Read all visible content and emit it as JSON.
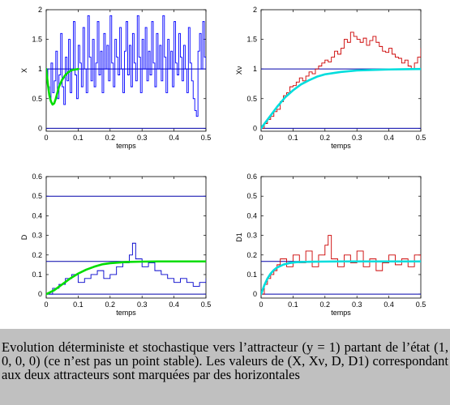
{
  "caption": "Evolution déterministe et stochastique vers l’attracteur (y = 1) partant de l’état (1, 0, 0, 0) (ce n’est pas un point stable). Les valeurs de (X, Xν, D, D1) correspondant aux deux attracteurs sont marquées par des horizontales",
  "colors": {
    "stochastic_X": "#0000ff",
    "stochastic_Xv": "#cc0000",
    "stochastic_D": "#0000cc",
    "stochastic_D1": "#cc0000",
    "deterministic_green": "#00dd00",
    "deterministic_cyan": "#00dddd",
    "attractor_lines": "#0000aa"
  },
  "chart_data": [
    {
      "type": "line",
      "panel": "top-left",
      "xlabel": "temps",
      "ylabel": "X",
      "xlim": [
        0,
        0.5
      ],
      "ylim": [
        -0.05,
        2
      ],
      "xticks": [
        "0",
        "0.1",
        "0.2",
        "0.3",
        "0.4",
        "0.5"
      ],
      "yticks": [
        "0",
        "0.5",
        "1",
        "1.5",
        "2"
      ],
      "attractor_values": [
        0,
        1
      ],
      "series": [
        {
          "kind": "stochastic",
          "x": [
            0,
            0.005,
            0.01,
            0.015,
            0.02,
            0.025,
            0.03,
            0.035,
            0.04,
            0.045,
            0.05,
            0.055,
            0.06,
            0.065,
            0.07,
            0.075,
            0.08,
            0.085,
            0.09,
            0.095,
            0.1,
            0.105,
            0.11,
            0.115,
            0.12,
            0.125,
            0.13,
            0.135,
            0.14,
            0.145,
            0.15,
            0.155,
            0.16,
            0.165,
            0.17,
            0.175,
            0.18,
            0.185,
            0.19,
            0.195,
            0.2,
            0.205,
            0.21,
            0.215,
            0.22,
            0.225,
            0.23,
            0.235,
            0.24,
            0.245,
            0.25,
            0.255,
            0.26,
            0.265,
            0.27,
            0.275,
            0.28,
            0.285,
            0.29,
            0.295,
            0.3,
            0.305,
            0.31,
            0.315,
            0.32,
            0.325,
            0.33,
            0.335,
            0.34,
            0.345,
            0.35,
            0.355,
            0.36,
            0.365,
            0.37,
            0.375,
            0.38,
            0.385,
            0.39,
            0.395,
            0.4,
            0.405,
            0.41,
            0.415,
            0.42,
            0.425,
            0.43,
            0.435,
            0.44,
            0.445,
            0.45,
            0.455,
            0.46,
            0.465,
            0.47,
            0.475,
            0.48,
            0.485,
            0.49,
            0.495,
            0.5
          ],
          "y": [
            1.0,
            0.7,
            0.5,
            1.1,
            0.6,
            0.8,
            1.3,
            0.5,
            0.9,
            1.6,
            0.7,
            0.4,
            1.2,
            0.8,
            1.5,
            0.6,
            1.0,
            1.8,
            0.9,
            0.5,
            1.4,
            1.1,
            0.7,
            1.7,
            1.0,
            0.6,
            1.9,
            1.2,
            0.8,
            1.5,
            0.7,
            1.1,
            1.8,
            0.9,
            1.3,
            0.6,
            1.6,
            1.0,
            1.4,
            0.8,
            1.9,
            1.1,
            0.7,
            1.5,
            1.2,
            0.9,
            1.7,
            1.0,
            0.6,
            1.3,
            1.8,
            0.9,
            1.4,
            0.7,
            1.6,
            1.1,
            0.8,
            1.9,
            1.2,
            0.6,
            1.5,
            1.0,
            1.7,
            0.8,
            1.3,
            0.9,
            1.8,
            1.1,
            0.7,
            1.6,
            1.0,
            1.4,
            0.8,
            1.9,
            1.2,
            0.6,
            1.5,
            1.0,
            1.3,
            0.7,
            1.8,
            1.1,
            0.9,
            1.6,
            1.2,
            0.8,
            1.4,
            1.0,
            0.6,
            1.7,
            1.1,
            0.8,
            0.5,
            0.3,
            0.2,
            1.3,
            1.6,
            1.0,
            1.8,
            1.2,
            1.0
          ]
        },
        {
          "kind": "deterministic",
          "x": [
            0,
            0.005,
            0.01,
            0.015,
            0.02,
            0.025,
            0.03,
            0.035,
            0.04,
            0.05,
            0.06,
            0.07,
            0.08,
            0.09,
            0.1
          ],
          "y": [
            1.0,
            0.75,
            0.55,
            0.45,
            0.4,
            0.42,
            0.5,
            0.6,
            0.7,
            0.82,
            0.9,
            0.95,
            0.98,
            0.99,
            1.0
          ]
        }
      ]
    },
    {
      "type": "line",
      "panel": "top-right",
      "xlabel": "temps",
      "ylabel": "Xν",
      "xlim": [
        0,
        0.5
      ],
      "ylim": [
        -0.05,
        2
      ],
      "xticks": [
        "0",
        "0.1",
        "0.2",
        "0.3",
        "0.4",
        "0.5"
      ],
      "yticks": [
        "0",
        "0.5",
        "1",
        "1.5",
        "2"
      ],
      "attractor_values": [
        0,
        1
      ],
      "series": [
        {
          "kind": "stochastic",
          "x": [
            0,
            0.01,
            0.02,
            0.03,
            0.04,
            0.05,
            0.06,
            0.07,
            0.08,
            0.09,
            0.1,
            0.11,
            0.12,
            0.13,
            0.14,
            0.15,
            0.16,
            0.17,
            0.18,
            0.19,
            0.2,
            0.21,
            0.22,
            0.23,
            0.24,
            0.25,
            0.26,
            0.27,
            0.28,
            0.29,
            0.3,
            0.31,
            0.32,
            0.33,
            0.34,
            0.35,
            0.36,
            0.37,
            0.38,
            0.39,
            0.4,
            0.41,
            0.42,
            0.43,
            0.44,
            0.45,
            0.46,
            0.47,
            0.48,
            0.49,
            0.5
          ],
          "y": [
            0.0,
            0.08,
            0.15,
            0.2,
            0.28,
            0.32,
            0.45,
            0.55,
            0.6,
            0.7,
            0.72,
            0.78,
            0.85,
            0.8,
            0.88,
            0.95,
            0.92,
            1.0,
            1.05,
            1.1,
            1.15,
            1.12,
            1.2,
            1.3,
            1.25,
            1.35,
            1.5,
            1.45,
            1.62,
            1.55,
            1.5,
            1.45,
            1.52,
            1.4,
            1.48,
            1.55,
            1.45,
            1.38,
            1.3,
            1.28,
            1.35,
            1.25,
            1.2,
            1.18,
            1.1,
            1.15,
            1.05,
            1.0,
            1.1,
            1.2,
            1.35
          ]
        },
        {
          "kind": "deterministic",
          "x": [
            0,
            0.025,
            0.05,
            0.075,
            0.1,
            0.125,
            0.15,
            0.175,
            0.2,
            0.25,
            0.3,
            0.35,
            0.4,
            0.45,
            0.5
          ],
          "y": [
            0.0,
            0.18,
            0.36,
            0.52,
            0.64,
            0.74,
            0.81,
            0.87,
            0.91,
            0.95,
            0.975,
            0.985,
            0.992,
            0.996,
            1.0
          ]
        }
      ]
    },
    {
      "type": "line",
      "panel": "bottom-left",
      "xlabel": "temps",
      "ylabel": "D",
      "xlim": [
        0,
        0.5
      ],
      "ylim": [
        -0.02,
        0.6
      ],
      "xticks": [
        "0",
        "0.1",
        "0.2",
        "0.3",
        "0.4",
        "0.5"
      ],
      "yticks": [
        "0",
        "0.1",
        "0.2",
        "0.3",
        "0.4",
        "0.5",
        "0.6"
      ],
      "attractor_values": [
        0.5,
        0.167,
        0
      ],
      "series": [
        {
          "kind": "stochastic",
          "x": [
            0,
            0.02,
            0.04,
            0.06,
            0.08,
            0.1,
            0.12,
            0.14,
            0.16,
            0.18,
            0.2,
            0.22,
            0.24,
            0.26,
            0.27,
            0.28,
            0.3,
            0.32,
            0.34,
            0.36,
            0.38,
            0.4,
            0.42,
            0.44,
            0.46,
            0.48,
            0.5
          ],
          "y": [
            0.0,
            0.03,
            0.05,
            0.08,
            0.1,
            0.06,
            0.08,
            0.1,
            0.12,
            0.08,
            0.1,
            0.14,
            0.16,
            0.2,
            0.26,
            0.18,
            0.14,
            0.16,
            0.12,
            0.1,
            0.08,
            0.06,
            0.08,
            0.06,
            0.04,
            0.06,
            0.08
          ]
        },
        {
          "kind": "deterministic",
          "x": [
            0,
            0.025,
            0.05,
            0.075,
            0.1,
            0.125,
            0.15,
            0.175,
            0.2,
            0.25,
            0.3,
            0.35,
            0.4,
            0.45,
            0.5
          ],
          "y": [
            0.0,
            0.02,
            0.05,
            0.08,
            0.105,
            0.125,
            0.14,
            0.152,
            0.158,
            0.164,
            0.166,
            0.167,
            0.167,
            0.167,
            0.167
          ]
        }
      ]
    },
    {
      "type": "line",
      "panel": "bottom-right",
      "xlabel": "temps",
      "ylabel": "D1",
      "xlim": [
        0,
        0.5
      ],
      "ylim": [
        -0.02,
        0.6
      ],
      "xticks": [
        "0",
        "0.1",
        "0.2",
        "0.3",
        "0.4",
        "0.5"
      ],
      "yticks": [
        "0",
        "0.1",
        "0.2",
        "0.3",
        "0.4",
        "0.5",
        "0.6"
      ],
      "attractor_values": [
        0.167,
        0
      ],
      "series": [
        {
          "kind": "stochastic",
          "x": [
            0,
            0.01,
            0.02,
            0.03,
            0.04,
            0.05,
            0.06,
            0.08,
            0.1,
            0.12,
            0.14,
            0.16,
            0.18,
            0.2,
            0.21,
            0.22,
            0.24,
            0.26,
            0.28,
            0.3,
            0.32,
            0.34,
            0.36,
            0.38,
            0.4,
            0.42,
            0.44,
            0.46,
            0.48,
            0.5
          ],
          "y": [
            0.0,
            0.05,
            0.08,
            0.1,
            0.12,
            0.15,
            0.18,
            0.14,
            0.2,
            0.16,
            0.22,
            0.14,
            0.2,
            0.25,
            0.3,
            0.18,
            0.14,
            0.2,
            0.16,
            0.22,
            0.14,
            0.18,
            0.12,
            0.16,
            0.2,
            0.15,
            0.18,
            0.14,
            0.2,
            0.18
          ]
        },
        {
          "kind": "deterministic",
          "x": [
            0,
            0.01,
            0.02,
            0.03,
            0.04,
            0.05,
            0.07,
            0.09,
            0.11,
            0.14,
            0.18,
            0.25,
            0.35,
            0.5
          ],
          "y": [
            0.0,
            0.045,
            0.08,
            0.105,
            0.123,
            0.136,
            0.151,
            0.159,
            0.163,
            0.165,
            0.166,
            0.167,
            0.167,
            0.167
          ]
        }
      ]
    }
  ]
}
